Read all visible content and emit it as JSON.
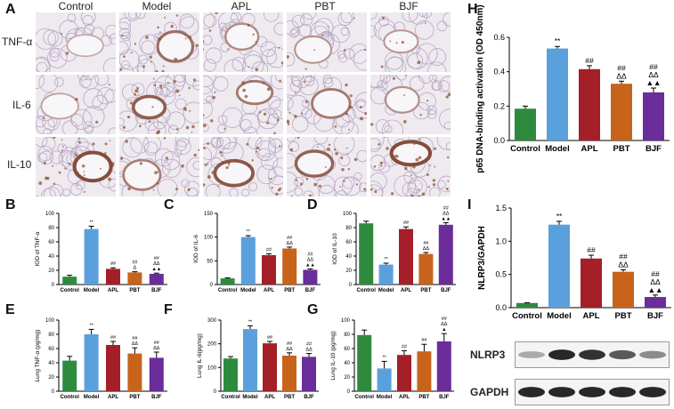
{
  "colors": {
    "Control": "#2e8b3e",
    "Model": "#5aa0dc",
    "APL": "#a51f28",
    "PBT": "#c8631c",
    "BJF": "#6a2d9a"
  },
  "panel_letters": {
    "A": "A",
    "B": "B",
    "C": "C",
    "D": "D",
    "E": "E",
    "F": "F",
    "G": "G",
    "H": "H",
    "I": "I"
  },
  "ihc": {
    "columns": [
      "Control",
      "Model",
      "APL",
      "PBT",
      "BJF"
    ],
    "rows": [
      "TNF-α",
      "IL-6",
      "IL-10"
    ],
    "stain_intensity": [
      [
        0.05,
        0.55,
        0.3,
        0.2,
        0.18
      ],
      [
        0.1,
        0.7,
        0.45,
        0.45,
        0.25
      ],
      [
        0.85,
        0.4,
        0.75,
        0.65,
        0.85
      ]
    ]
  },
  "western": {
    "labels": [
      "NLRP3",
      "GAPDH"
    ],
    "nlrp3_intensity": [
      0.3,
      0.95,
      0.9,
      0.7,
      0.45
    ],
    "gapdh_intensity": [
      0.95,
      0.95,
      0.95,
      0.95,
      0.95
    ]
  },
  "chart_data": [
    {
      "id": "B",
      "type": "bar",
      "ylabel": "IOD of TNF-α",
      "categories": [
        "Control",
        "Model",
        "APL",
        "PBT",
        "BJF"
      ],
      "values": [
        11,
        78,
        22,
        17,
        15
      ],
      "errors": [
        2,
        4,
        1.5,
        1,
        1
      ],
      "ylim": [
        0,
        100
      ],
      "yticks": [
        0,
        20,
        40,
        60,
        80,
        100
      ],
      "annotations": [
        [],
        [
          "**"
        ],
        [
          "##"
        ],
        [
          "##",
          "Δ"
        ],
        [
          "##",
          "ΔΔ",
          "▲▲"
        ]
      ]
    },
    {
      "id": "C",
      "type": "bar",
      "ylabel": "IOD of IL-6",
      "categories": [
        "Control",
        "Model",
        "APL",
        "PBT",
        "BJF"
      ],
      "values": [
        13,
        100,
        62,
        76,
        31
      ],
      "errors": [
        1,
        3,
        3,
        3,
        2
      ],
      "ylim": [
        0,
        150
      ],
      "yticks": [
        0,
        50,
        100,
        150
      ],
      "annotations": [
        [],
        [
          "**"
        ],
        [
          "##"
        ],
        [
          "##",
          "ΔΔ"
        ],
        [
          "##",
          "ΔΔ",
          "▲▲"
        ]
      ]
    },
    {
      "id": "D",
      "type": "bar",
      "ylabel": "IOD of IL-10",
      "categories": [
        "Control",
        "Model",
        "APL",
        "PBT",
        "BJF"
      ],
      "values": [
        86,
        28,
        78,
        43,
        84
      ],
      "errors": [
        3,
        2,
        3,
        2,
        3
      ],
      "ylim": [
        0,
        100
      ],
      "yticks": [
        0,
        20,
        40,
        60,
        80,
        100
      ],
      "annotations": [
        [],
        [
          "**"
        ],
        [
          "##"
        ],
        [
          "##",
          "ΔΔ"
        ],
        [
          "##",
          "ΔΔ",
          "▲▲"
        ]
      ]
    },
    {
      "id": "E",
      "type": "bar",
      "ylabel": "Lung TNF-α (pg/mg)",
      "categories": [
        "Control",
        "Model",
        "APL",
        "PBT",
        "BJF"
      ],
      "values": [
        43,
        80,
        65,
        53,
        47
      ],
      "errors": [
        6,
        7,
        5,
        8,
        8
      ],
      "ylim": [
        0,
        100
      ],
      "yticks": [
        0,
        20,
        40,
        60,
        80,
        100
      ],
      "annotations": [
        [],
        [
          "**"
        ],
        [
          "##"
        ],
        [
          "##",
          "ΔΔ"
        ],
        [
          "##",
          "ΔΔ"
        ]
      ]
    },
    {
      "id": "F",
      "type": "bar",
      "ylabel": "Lung IL-6(pg/mg)",
      "categories": [
        "Control",
        "Model",
        "APL",
        "PBT",
        "BJF"
      ],
      "values": [
        138,
        262,
        202,
        150,
        145
      ],
      "errors": [
        8,
        14,
        8,
        12,
        14
      ],
      "ylim": [
        0,
        300
      ],
      "yticks": [
        0,
        100,
        200,
        300
      ],
      "annotations": [
        [],
        [
          "**"
        ],
        [
          "##"
        ],
        [
          "##",
          "ΔΔ"
        ],
        [
          "##",
          "ΔΔ"
        ]
      ]
    },
    {
      "id": "G",
      "type": "bar",
      "ylabel": "Lung IL-10 (pg/mg)",
      "categories": [
        "Control",
        "Model",
        "APL",
        "PBT",
        "BJF"
      ],
      "values": [
        79,
        32,
        51,
        56,
        70
      ],
      "errors": [
        7,
        10,
        6,
        10,
        11
      ],
      "ylim": [
        0,
        100
      ],
      "yticks": [
        0,
        20,
        40,
        60,
        80,
        100
      ],
      "annotations": [
        [],
        [
          "**"
        ],
        [
          "##"
        ],
        [
          "##"
        ],
        [
          "##",
          "ΔΔ",
          "▲"
        ]
      ]
    },
    {
      "id": "H",
      "type": "bar",
      "ylabel": "p65 DNA-binding activation (OD 450nm)",
      "categories": [
        "Control",
        "Model",
        "APL",
        "PBT",
        "BJF"
      ],
      "values": [
        0.185,
        0.535,
        0.415,
        0.33,
        0.28
      ],
      "errors": [
        0.015,
        0.012,
        0.02,
        0.015,
        0.025
      ],
      "ylim": [
        0,
        0.6
      ],
      "yticks": [
        0.0,
        0.2,
        0.4,
        0.6
      ],
      "annotations": [
        [],
        [
          "**"
        ],
        [
          "##"
        ],
        [
          "##",
          "ΔΔ"
        ],
        [
          "##",
          "ΔΔ",
          "▲▲"
        ]
      ]
    },
    {
      "id": "I",
      "type": "bar",
      "ylabel": "NLRP3/GAPDH",
      "categories": [
        "Control",
        "Model",
        "APL",
        "PBT",
        "BJF"
      ],
      "values": [
        0.07,
        1.25,
        0.74,
        0.54,
        0.16
      ],
      "errors": [
        0.005,
        0.05,
        0.05,
        0.03,
        0.03
      ],
      "ylim": [
        0,
        1.5
      ],
      "yticks": [
        0.0,
        0.5,
        1.0,
        1.5
      ],
      "annotations": [
        [],
        [
          "**"
        ],
        [
          "##"
        ],
        [
          "##",
          "ΔΔ"
        ],
        [
          "##",
          "ΔΔ",
          "▲▲"
        ]
      ]
    }
  ]
}
